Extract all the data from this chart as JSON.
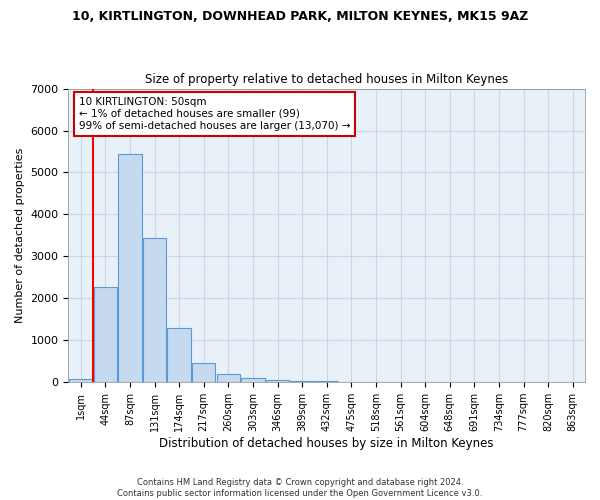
{
  "title": "10, KIRTLINGTON, DOWNHEAD PARK, MILTON KEYNES, MK15 9AZ",
  "subtitle": "Size of property relative to detached houses in Milton Keynes",
  "xlabel": "Distribution of detached houses by size in Milton Keynes",
  "ylabel": "Number of detached properties",
  "bar_color": "#c5d9ef",
  "bar_edge_color": "#5b9bd5",
  "categories": [
    "1sqm",
    "44sqm",
    "87sqm",
    "131sqm",
    "174sqm",
    "217sqm",
    "260sqm",
    "303sqm",
    "346sqm",
    "389sqm",
    "432sqm",
    "475sqm",
    "518sqm",
    "561sqm",
    "604sqm",
    "648sqm",
    "691sqm",
    "734sqm",
    "777sqm",
    "820sqm",
    "863sqm"
  ],
  "values": [
    80,
    2280,
    5450,
    3430,
    1300,
    470,
    190,
    100,
    60,
    40,
    30,
    5,
    0,
    0,
    0,
    0,
    0,
    0,
    0,
    0,
    0
  ],
  "ylim": [
    0,
    7000
  ],
  "yticks": [
    0,
    1000,
    2000,
    3000,
    4000,
    5000,
    6000,
    7000
  ],
  "red_line_x": 0.5,
  "annotation_text": "10 KIRTLINGTON: 50sqm\n← 1% of detached houses are smaller (99)\n99% of semi-detached houses are larger (13,070) →",
  "annotation_box_color": "#ffffff",
  "annotation_box_edge": "#cc0000",
  "footer_line1": "Contains HM Land Registry data © Crown copyright and database right 2024.",
  "footer_line2": "Contains public sector information licensed under the Open Government Licence v3.0.",
  "grid_color": "#c8d8e8",
  "background_color": "#ffffff",
  "plot_bg_color": "#e8f0f8"
}
